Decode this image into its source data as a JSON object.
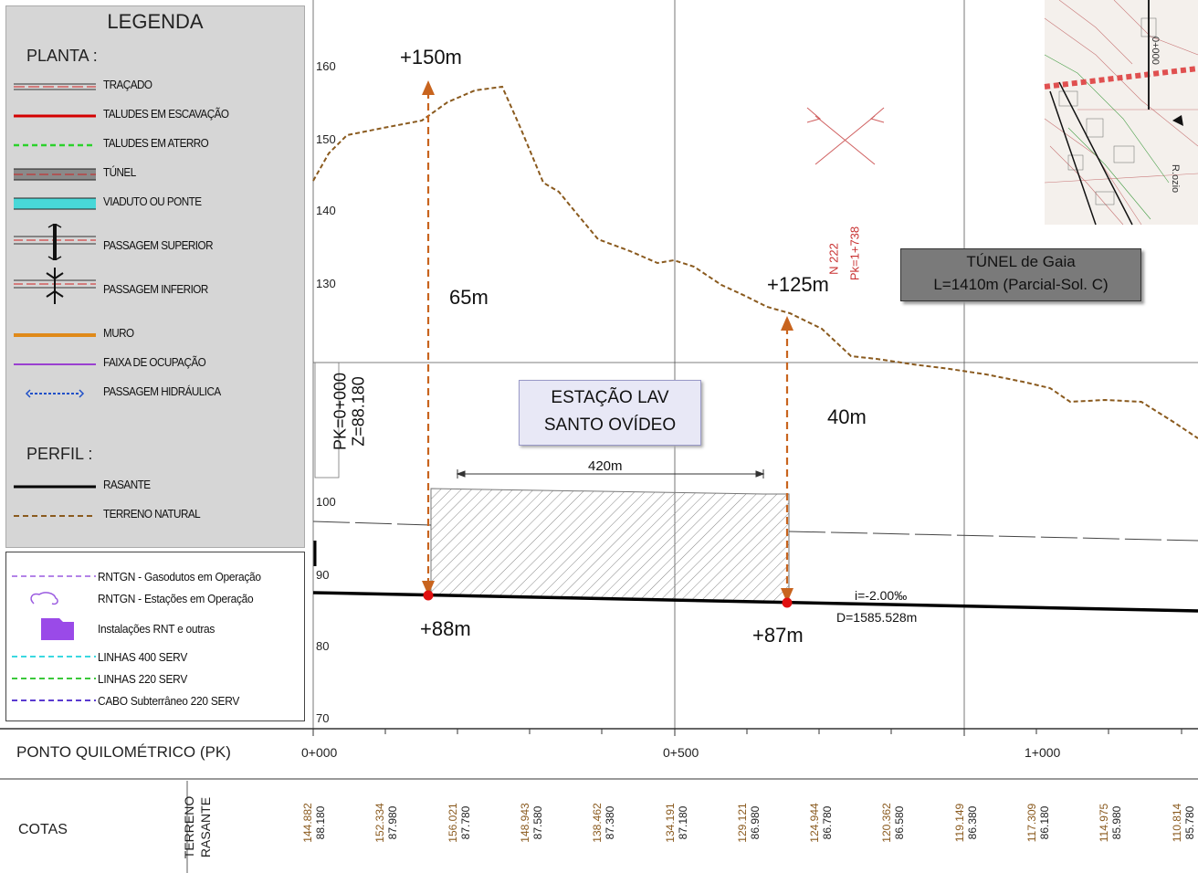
{
  "legend": {
    "title": "LEGENDA",
    "planta_heading": "PLANTA :",
    "planta_items": [
      {
        "label": "TRAÇADO",
        "icon": "traçado-line"
      },
      {
        "label": "TALUDES EM ESCAVAÇÃO",
        "icon": "red-line",
        "color": "#d40000"
      },
      {
        "label": "TALUDES EM ATERRO",
        "icon": "green-dashed-line",
        "color": "#2bd12b"
      },
      {
        "label": "TÚNEL",
        "icon": "tunnel-band"
      },
      {
        "label": "VIADUTO OU PONTE",
        "icon": "cyan-band",
        "color": "#48d8d8"
      },
      {
        "label": "PASSAGEM SUPERIOR",
        "icon": "overpass-symbol"
      },
      {
        "label": "PASSAGEM INFERIOR",
        "icon": "underpass-symbol"
      },
      {
        "label": "MURO",
        "icon": "orange-line",
        "color": "#e08a1a"
      },
      {
        "label": "FAIXA DE OCUPAÇÃO",
        "icon": "purple-line",
        "color": "#9a40d0"
      },
      {
        "label": "PASSAGEM HIDRÁULICA",
        "icon": "blue-culvert",
        "color": "#2050c8"
      }
    ],
    "perfil_heading": "PERFIL :",
    "perfil_items": [
      {
        "label": "RASANTE",
        "icon": "black-line"
      },
      {
        "label": "TERRENO NATURAL",
        "icon": "brown-dashed-line",
        "color": "#8a5a1e"
      }
    ]
  },
  "legend2": {
    "items": [
      {
        "label": "RNTGN - Gasodutos em Operação",
        "icon": "violet-dashed-line",
        "color": "#9a5ae0"
      },
      {
        "label": "RNTGN - Estações em Operação",
        "icon": "station-outline-icon",
        "color": "#9a5ae0"
      },
      {
        "label": "Instalações RNT e outras",
        "icon": "purple-block-icon",
        "color": "#9a4ae8"
      },
      {
        "label": "LINHAS 400 SERV",
        "icon": "cyan-dashed-line",
        "color": "#3ad8e0"
      },
      {
        "label": "LINHAS 220  SERV",
        "icon": "green-dashed-line",
        "color": "#3ac83a"
      },
      {
        "label": "CABO Subterrâneo 220 SERV",
        "icon": "indigo-dashed-line",
        "color": "#5a3ad0"
      }
    ]
  },
  "profile": {
    "y_axis_ticks": [
      "160",
      "150",
      "140",
      "130",
      "100",
      "90",
      "80",
      "70"
    ],
    "pk_start_label": "PK=0+000",
    "z_start_label": "Z=88.180",
    "station_lines": [
      "ESTAÇÃO LAV",
      "SANTO OVÍDEO"
    ],
    "station_length": "420m",
    "tunnel_lines": [
      "TÚNEL de Gaia",
      "L=1410m (Parcial-Sol. C)"
    ],
    "n222_lines": [
      "N 222",
      "Pk=1+738"
    ],
    "slope_text": "i=-2.00‰",
    "distance_text": "D=1585.528m",
    "annotations": {
      "top_left": "+150m",
      "depth_left": "65m",
      "bottom_left": "+88m",
      "top_right": "+125m",
      "depth_right": "40m",
      "bottom_right": "+87m"
    },
    "colors": {
      "terrain": "#8a5a1e",
      "arrow": "#c8641e",
      "point": "#e01010",
      "hatch": "#888888"
    }
  },
  "pk_row": {
    "label": "PONTO QUILOMÉTRICO (PK)",
    "ticks": [
      "0+000",
      "0+500",
      "1+000"
    ]
  },
  "cotas": {
    "label": "COTAS",
    "row_terreno": "TERRENO",
    "row_rasante": "RASANTE",
    "terreno": [
      "144.882",
      "152.334",
      "156.021",
      "148.943",
      "138.462",
      "134.191",
      "129.121",
      "124.944",
      "120.362",
      "119.149",
      "117.309",
      "114.975",
      "110.814"
    ],
    "rasante": [
      "88.180",
      "87.980",
      "87.780",
      "87.580",
      "87.380",
      "87.180",
      "86.980",
      "86.780",
      "86.580",
      "86.380",
      "86.180",
      "85.980",
      "85.780"
    ]
  },
  "minimap": {
    "pk_label": "0+000",
    "road_label": "R.ozio"
  }
}
